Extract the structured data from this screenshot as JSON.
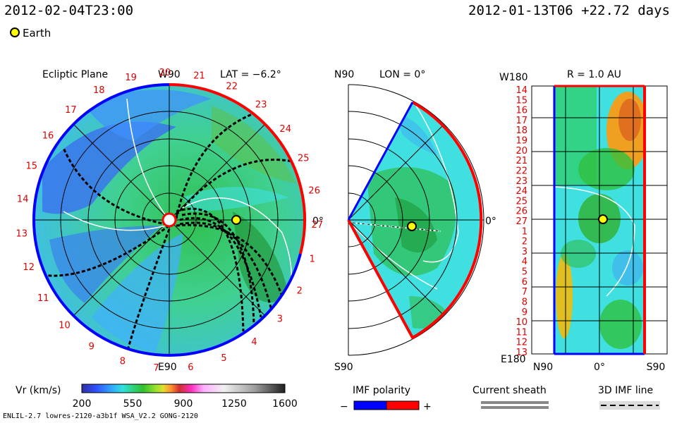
{
  "header": {
    "datetime": "2012-02-04T23:00",
    "run_info": "2012-01-13T06 +22.72 days"
  },
  "legend": {
    "earth_label": "Earth",
    "earth_color": "#ffff00"
  },
  "panels": {
    "ecliptic": {
      "title": "Ecliptic Plane",
      "top_label": "W90",
      "lat_label": "LAT = −6.2°",
      "bottom_label": "E90",
      "right_label": "0°",
      "carrington_ticks": [
        "19",
        "20",
        "21",
        "22",
        "23",
        "24",
        "25",
        "26",
        "27",
        "1",
        "2",
        "3",
        "4",
        "5",
        "6",
        "7",
        "8",
        "9",
        "10",
        "11",
        "12",
        "13",
        "14",
        "15",
        "16",
        "17",
        "18"
      ]
    },
    "meridional": {
      "top_label": "N90",
      "lon_label": "LON = 0°",
      "bottom_label": "S90",
      "right_label": "0°"
    },
    "radial": {
      "top_label": "W180",
      "r_label": "R = 1.0 AU",
      "bottom_label": "E180",
      "x_labels": [
        "N90",
        "0°",
        "S90"
      ],
      "y_labels": [
        "14",
        "15",
        "16",
        "17",
        "18",
        "19",
        "20",
        "21",
        "22",
        "23",
        "24",
        "25",
        "26",
        "27",
        "1",
        "2",
        "3",
        "4",
        "5",
        "6",
        "7",
        "8",
        "9",
        "10",
        "11",
        "12",
        "13"
      ]
    }
  },
  "colorbar": {
    "label": "Vr (km/s)",
    "ticks": [
      "200",
      "550",
      "900",
      "1250",
      "1600"
    ],
    "colors": [
      "#3030a0",
      "#3050ff",
      "#30a0ff",
      "#30e0e0",
      "#30d070",
      "#30c030",
      "#90e030",
      "#e0e030",
      "#ff9030",
      "#d03030",
      "#ff30c0",
      "#ffb0ff",
      "#f0f0f0",
      "#c0c0c0",
      "#808080",
      "#303030"
    ]
  },
  "keys": {
    "imf_polarity": {
      "label": "IMF polarity",
      "minus": "−",
      "plus": "+",
      "neg_color": "#0000ff",
      "pos_color": "#ff0000"
    },
    "current_sheath": {
      "label": "Current sheath"
    },
    "imf_line": {
      "label": "3D IMF line"
    }
  },
  "footer": "ENLIL-2.7 lowres-2120-a3b1f WSA_V2.2 GONG-2120",
  "chart_data": {
    "type": "heatmap",
    "quantity": "Vr (km/s)",
    "color_range": [
      200,
      1600
    ],
    "earth_lat_deg": -6.2,
    "earth_lon_deg": 0,
    "radial_distance_au": 1.0,
    "panels": [
      "Ecliptic Plane",
      "LON = 0°",
      "R = 1.0 AU"
    ]
  }
}
